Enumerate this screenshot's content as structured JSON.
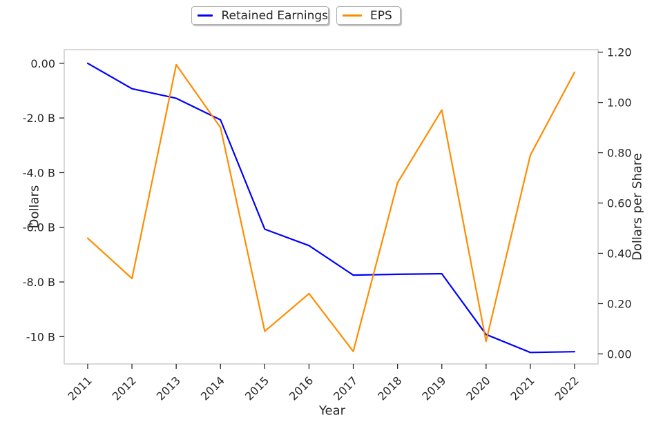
{
  "chart_data": {
    "type": "line",
    "title": "",
    "xlabel": "Year",
    "categories": [
      "2011",
      "2012",
      "2013",
      "2014",
      "2015",
      "2016",
      "2017",
      "2018",
      "2019",
      "2020",
      "2021",
      "2022"
    ],
    "x_range": [
      -0.53,
      11.53
    ],
    "grid": false,
    "legend": {
      "position": "upper center",
      "entries": [
        "Retained Earnings",
        "EPS"
      ]
    },
    "left_axis": {
      "label": "Dollars",
      "units": "billions of dollars",
      "range": [
        -11.0,
        0.5
      ],
      "ticks": [
        {
          "value": 0,
          "label": "0.00"
        },
        {
          "value": -2,
          "label": "-2.0 B"
        },
        {
          "value": -4,
          "label": "-4.0 B"
        },
        {
          "value": -6,
          "label": "-6.0 B"
        },
        {
          "value": -8,
          "label": "-8.0 B"
        },
        {
          "value": -10,
          "label": "-10 B"
        }
      ]
    },
    "right_axis": {
      "label": "Dollars per Share",
      "range": [
        -0.04,
        1.21
      ],
      "ticks": [
        {
          "value": 0.0,
          "label": "0.00"
        },
        {
          "value": 0.2,
          "label": "0.20"
        },
        {
          "value": 0.4,
          "label": "0.40"
        },
        {
          "value": 0.6,
          "label": "0.60"
        },
        {
          "value": 0.8,
          "label": "0.80"
        },
        {
          "value": 1.0,
          "label": "1.00"
        },
        {
          "value": 1.2,
          "label": "1.20"
        }
      ]
    },
    "series": [
      {
        "name": "Retained Earnings",
        "axis": "left",
        "color": "#0000ff",
        "values": [
          0.0,
          -0.93,
          -1.28,
          -2.07,
          -6.07,
          -6.67,
          -7.75,
          -7.72,
          -7.7,
          -9.92,
          -10.58,
          -10.55
        ]
      },
      {
        "name": "EPS",
        "axis": "right",
        "color": "#ff8c00",
        "values": [
          0.46,
          0.3,
          1.15,
          0.9,
          0.09,
          0.24,
          0.01,
          0.68,
          0.97,
          0.05,
          0.79,
          1.12
        ]
      }
    ],
    "styles": {
      "spine_color": "#cccccc",
      "tick_color": "#262626",
      "background": "#ffffff"
    }
  }
}
